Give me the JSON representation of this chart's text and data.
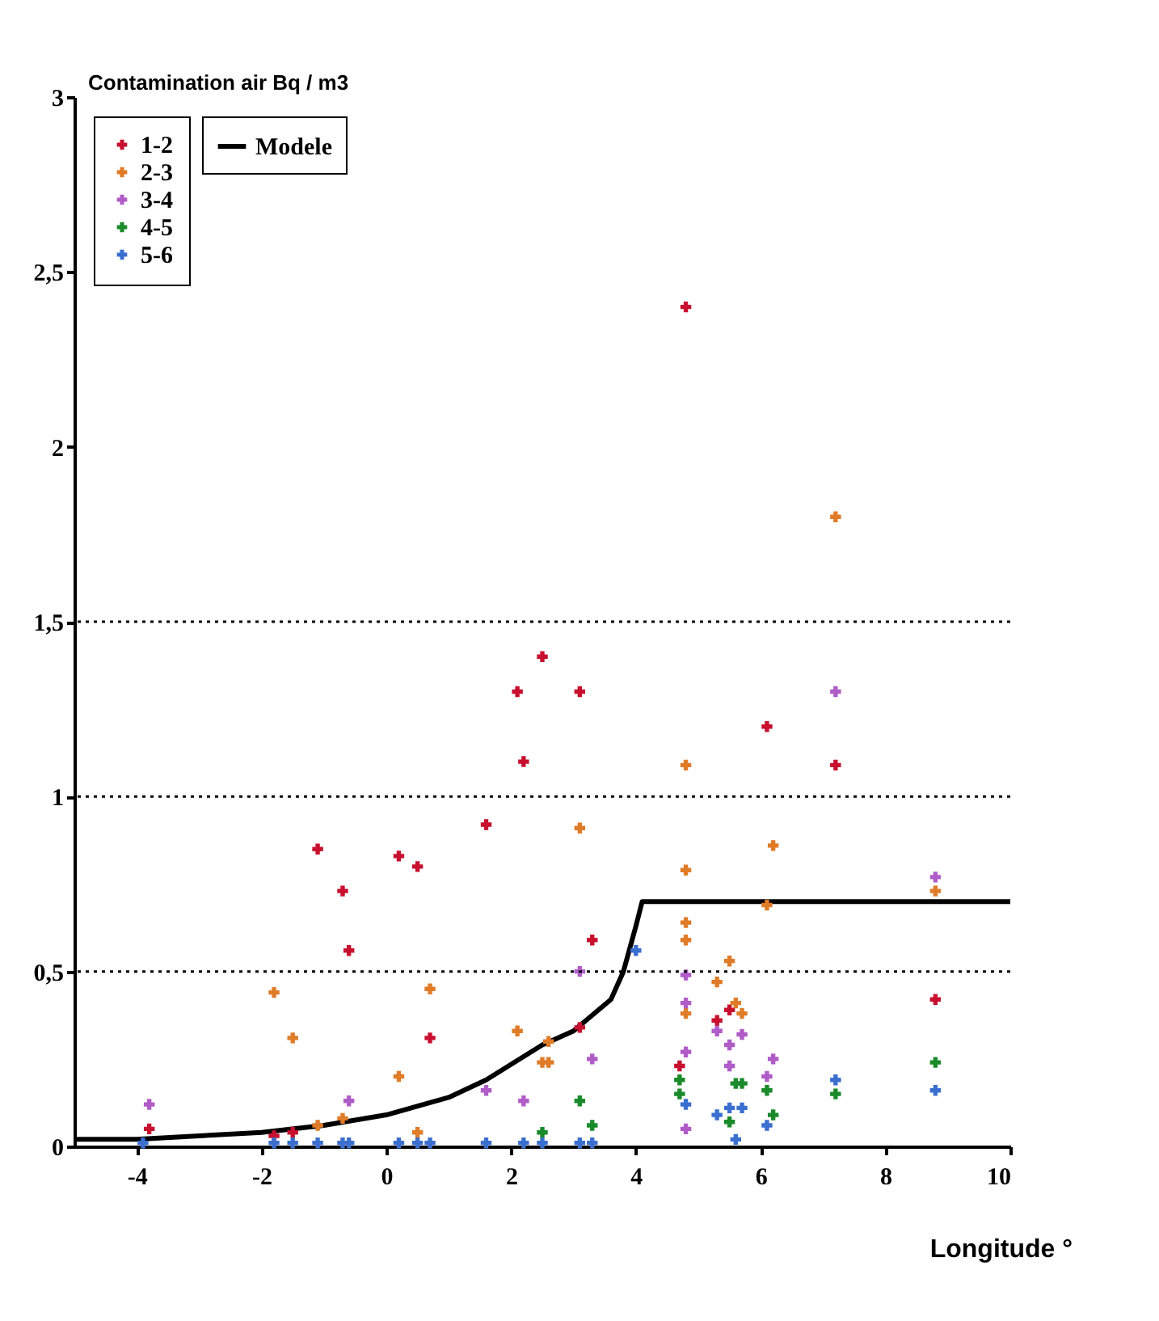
{
  "chart_data": {
    "type": "scatter",
    "ylabel": "Contamination air Bq / m3",
    "xlabel": "Longitude °",
    "xlim": [
      -5,
      10
    ],
    "xticks": [
      -4,
      -2,
      0,
      2,
      4,
      6,
      8,
      10
    ],
    "ylim": [
      0,
      3
    ],
    "yticks": [
      0,
      {
        "value": 0.5,
        "label": "0,5"
      },
      1,
      {
        "value": 1.5,
        "label": "1,5"
      },
      2,
      {
        "value": 2.5,
        "label": "2,5"
      },
      3
    ],
    "grid": false,
    "legend": "top left",
    "marker": "cross",
    "ref_lines": [
      {
        "axis": "y",
        "value": 0.5,
        "line_style": "dotted",
        "color": "#000000"
      },
      {
        "axis": "y",
        "value": 1,
        "line_style": "dotted",
        "color": "#000000"
      },
      {
        "axis": "y",
        "value": 1.5,
        "line_style": "dotted",
        "color": "#000000"
      }
    ],
    "series": [
      {
        "name": "1-2",
        "color": "#c8102e",
        "x": [
          4.8,
          2.5,
          2.1,
          3.1,
          2.2,
          6.1,
          7.2,
          -1.1,
          0.2,
          0.5,
          -0.7,
          1.6,
          -0.6,
          0.7,
          3.1,
          3.3,
          8.8,
          -3.8,
          -1.8,
          -1.5,
          5.5,
          5.3,
          4.7
        ],
        "values": [
          2.4,
          1.4,
          1.3,
          1.3,
          1.1,
          1.2,
          1.09,
          0.85,
          0.83,
          0.8,
          0.73,
          0.92,
          0.56,
          0.31,
          0.34,
          0.59,
          0.42,
          0.05,
          0.03,
          0.04,
          0.39,
          0.36,
          0.23
        ]
      },
      {
        "name": "2-3",
        "color": "#e07b28",
        "x": [
          4.8,
          7.2,
          3.1,
          4.8,
          6.2,
          8.8,
          6.1,
          4.8,
          4.8,
          5.5,
          5.3,
          4.8,
          5.6,
          5.7,
          2.6,
          2.6,
          -1.8,
          -1.5,
          0.2,
          0.7,
          2.1,
          2.5,
          -0.7,
          -1.1,
          0.5
        ],
        "values": [
          1.09,
          1.8,
          0.91,
          0.79,
          0.86,
          0.73,
          0.69,
          0.64,
          0.59,
          0.53,
          0.47,
          0.38,
          0.41,
          0.38,
          0.3,
          0.24,
          0.44,
          0.31,
          0.2,
          0.45,
          0.33,
          0.24,
          0.08,
          0.06,
          0.04
        ]
      },
      {
        "name": "3-4",
        "color": "#b05cc8",
        "x": [
          7.2,
          8.8,
          3.1,
          4.8,
          4.8,
          5.3,
          5.7,
          5.5,
          3.3,
          4.8,
          6.2,
          5.5,
          6.1,
          -3.8,
          1.6,
          2.2,
          -0.6,
          4.8
        ],
        "values": [
          1.3,
          0.77,
          0.5,
          0.49,
          0.41,
          0.33,
          0.32,
          0.29,
          0.25,
          0.27,
          0.25,
          0.23,
          0.2,
          0.12,
          0.16,
          0.13,
          0.13,
          0.05
        ]
      },
      {
        "name": "4-5",
        "color": "#1a8a2a",
        "x": [
          4.7,
          4.7,
          6.1,
          5.6,
          5.7,
          7.2,
          8.8,
          5.5,
          6.2,
          3.1,
          3.3,
          2.5
        ],
        "values": [
          0.19,
          0.15,
          0.16,
          0.18,
          0.18,
          0.15,
          0.24,
          0.07,
          0.09,
          0.13,
          0.06,
          0.04
        ]
      },
      {
        "name": "5-6",
        "color": "#3a6fd0",
        "x": [
          4.0,
          4.8,
          7.2,
          8.8,
          5.3,
          5.5,
          5.7,
          5.6,
          6.1,
          3.1,
          3.3,
          2.5,
          -3.9,
          -1.8,
          -1.5,
          -1.1,
          -0.7,
          -0.6,
          0.2,
          0.5,
          0.7,
          1.6,
          2.2
        ],
        "values": [
          0.56,
          0.12,
          0.19,
          0.16,
          0.09,
          0.11,
          0.11,
          0.02,
          0.06,
          0.01,
          0.01,
          0.01,
          0.01,
          0.01,
          0.01,
          0.01,
          0.01,
          0.01,
          0.01,
          0.01,
          0.01,
          0.01,
          0.01
        ]
      },
      {
        "name": "Modele",
        "color": "#000000",
        "type": "line",
        "marker": "none",
        "line_style": "solid",
        "x": [
          -5,
          -4,
          -3,
          -2,
          -1,
          0,
          1,
          1.6,
          2.5,
          3,
          3.6,
          3.8,
          4,
          4.1,
          10
        ],
        "values": [
          0.02,
          0.02,
          0.03,
          0.04,
          0.06,
          0.09,
          0.14,
          0.19,
          0.29,
          0.33,
          0.42,
          0.5,
          0.63,
          0.7,
          0.7
        ]
      }
    ]
  }
}
